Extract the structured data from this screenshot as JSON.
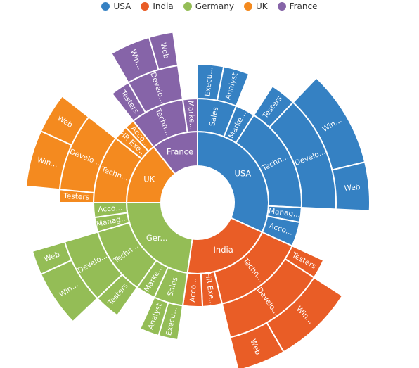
{
  "chart_data": {
    "type": "sunburst",
    "legend": [
      {
        "name": "USA",
        "color": "#3581c3"
      },
      {
        "name": "India",
        "color": "#e95d26"
      },
      {
        "name": "Germany",
        "color": "#94bd56"
      },
      {
        "name": "UK",
        "color": "#f48a1f"
      },
      {
        "name": "France",
        "color": "#8664a8"
      }
    ],
    "legend_position": "top",
    "nodes": [
      {
        "name": "USA",
        "label": "USA",
        "color": "#3581c3",
        "children": [
          {
            "name": "Sales",
            "label": "Sales",
            "children": [
              {
                "name": "Executive",
                "label": "Execu...",
                "value": 4
              },
              {
                "name": "Analyst",
                "label": "Analyst",
                "value": 4
              }
            ]
          },
          {
            "name": "Marketing",
            "label": "Marke...",
            "value": 4
          },
          {
            "name": "Technical",
            "label": "Techn...",
            "children": [
              {
                "name": "Testers",
                "label": "Testers",
                "value": 4
              },
              {
                "name": "Developers",
                "label": "Develo...",
                "children": [
                  {
                    "name": "Windows",
                    "label": "Win...",
                    "value": 12
                  },
                  {
                    "name": "Web",
                    "label": "Web",
                    "value": 6
                  }
                ]
              }
            ]
          },
          {
            "name": "Management",
            "label": "Manag...",
            "value": 3
          },
          {
            "name": "Accounts",
            "label": "Acco...",
            "value": 5
          }
        ]
      },
      {
        "name": "India",
        "label": "India",
        "color": "#e95d26",
        "children": [
          {
            "name": "Technical",
            "label": "Techn...",
            "children": [
              {
                "name": "Testers",
                "label": "Testers",
                "value": 3
              },
              {
                "name": "Developers",
                "label": "Develo...",
                "children": [
                  {
                    "name": "Windows",
                    "label": "Win...",
                    "value": 10
                  },
                  {
                    "name": "Web",
                    "label": "Web",
                    "value": 6
                  }
                ]
              }
            ]
          },
          {
            "name": "HR Executives",
            "label": "HR Exe...",
            "value": 4
          },
          {
            "name": "Accounts",
            "label": "Acco...",
            "value": 4
          }
        ]
      },
      {
        "name": "Germany",
        "label": "Ger...",
        "color": "#94bd56",
        "children": [
          {
            "name": "Sales",
            "label": "Sales",
            "children": [
              {
                "name": "Executive",
                "label": "Execu...",
                "value": 3
              },
              {
                "name": "Analyst",
                "label": "Analyst",
                "value": 3
              }
            ]
          },
          {
            "name": "Marketing",
            "label": "Marke...",
            "value": 4
          },
          {
            "name": "Technical",
            "label": "Techn...",
            "children": [
              {
                "name": "Testers",
                "label": "Testers",
                "value": 4
              },
              {
                "name": "Developers",
                "label": "Develo...",
                "children": [
                  {
                    "name": "Windows",
                    "label": "Win...",
                    "value": 7
                  },
                  {
                    "name": "Web",
                    "label": "Web",
                    "value": 3
                  }
                ]
              }
            ]
          },
          {
            "name": "Management",
            "label": "Manag...",
            "value": 3
          },
          {
            "name": "Accounts",
            "label": "Acco...",
            "value": 3
          }
        ]
      },
      {
        "name": "UK",
        "label": "UK",
        "color": "#f48a1f",
        "children": [
          {
            "name": "Technical",
            "label": "Techn...",
            "children": [
              {
                "name": "Testers",
                "label": "Testers",
                "value": 2
              },
              {
                "name": "Developers",
                "label": "Develo...",
                "children": [
                  {
                    "name": "Windows",
                    "label": "Win...",
                    "value": 7
                  },
                  {
                    "name": "Web",
                    "label": "Web",
                    "value": 5
                  }
                ]
              }
            ]
          },
          {
            "name": "HR Executives",
            "label": "HR Exe...",
            "value": 3
          },
          {
            "name": "Accounts",
            "label": "Acco...",
            "value": 2
          }
        ]
      },
      {
        "name": "France",
        "label": "France",
        "color": "#8664a8",
        "children": [
          {
            "name": "Technical",
            "label": "Techn...",
            "children": [
              {
                "name": "Testers",
                "label": "Testers",
                "value": 3
              },
              {
                "name": "Developers",
                "label": "Develo...",
                "children": [
                  {
                    "name": "Windows",
                    "label": "Win...",
                    "value": 5
                  },
                  {
                    "name": "Web",
                    "label": "Web",
                    "value": 3
                  }
                ]
              }
            ]
          },
          {
            "name": "Marketing",
            "label": "Marke...",
            "value": 3
          }
        ]
      }
    ]
  }
}
